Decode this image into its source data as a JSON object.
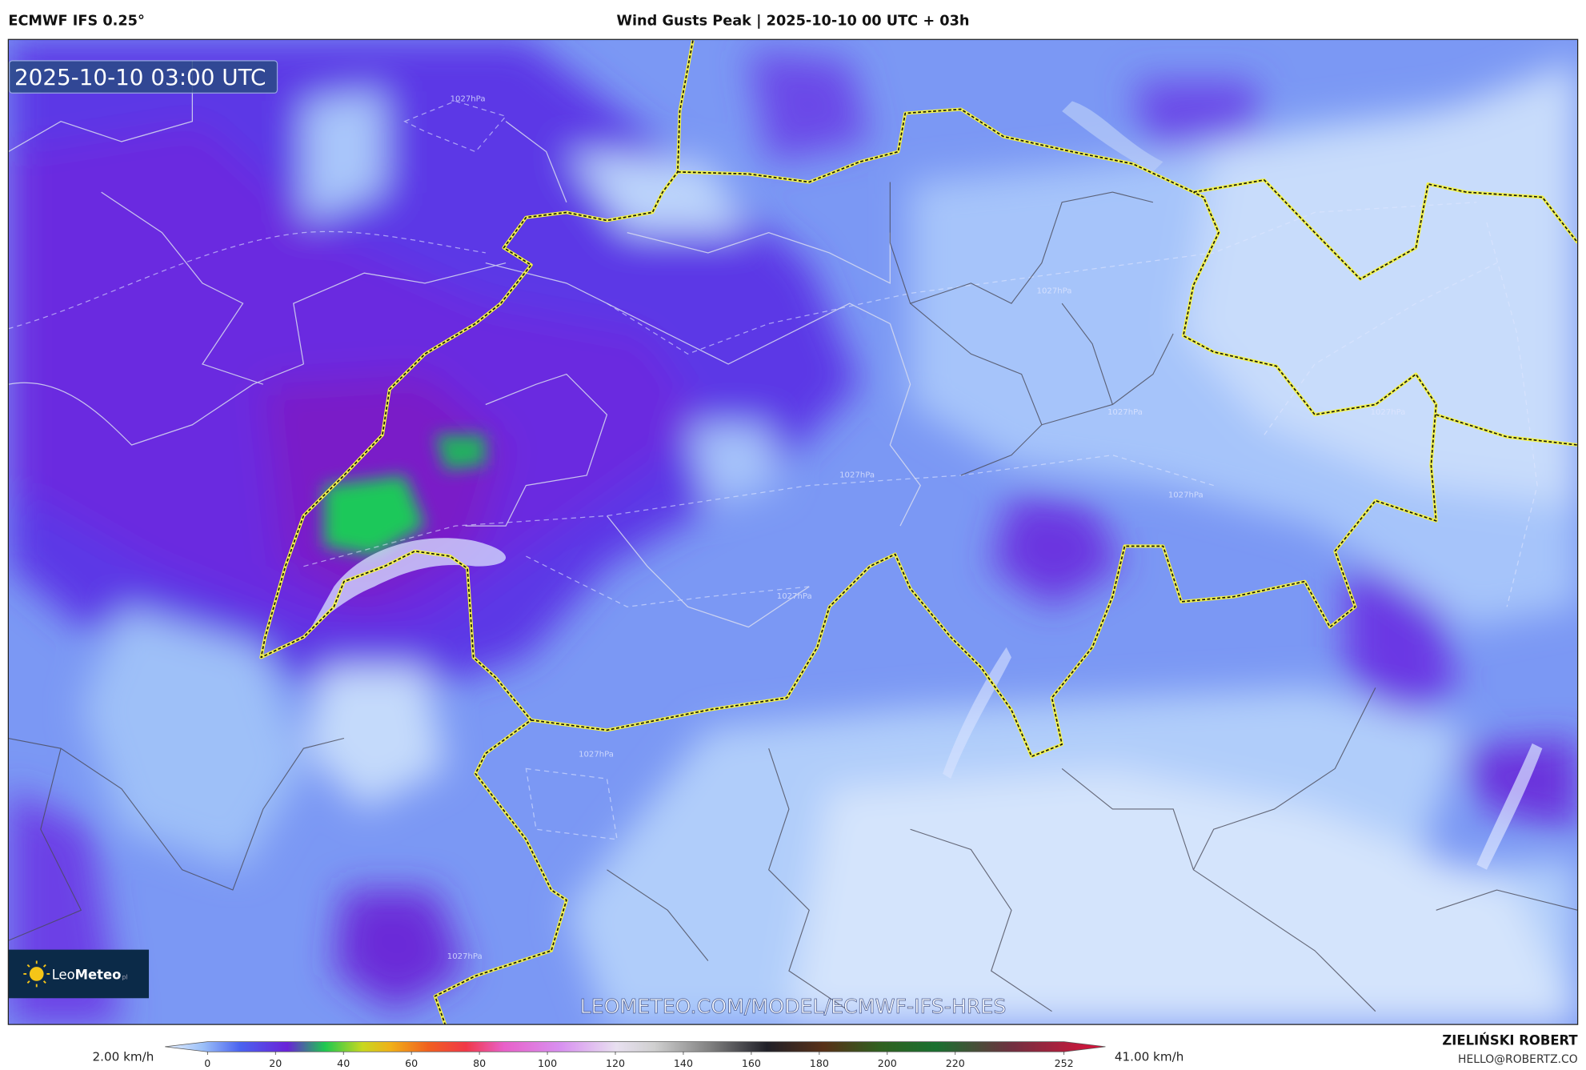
{
  "header": {
    "model": "ECMWF IFS 0.25°",
    "title": "Wind Gusts Peak | 2025-10-10 00 UTC + 03h"
  },
  "map": {
    "timestamp": "2025-10-10 03:00 UTC",
    "logo_leo": "Leo",
    "logo_meteo": "Meteo",
    "logo_suffix": "pl",
    "url": "LEOMETEO.COM/MODEL/ECMWF-IFS-HRES",
    "isobar_labels": [
      "1027hPa",
      "1027hPa",
      "1027hPa",
      "1027hPa",
      "1027hPa",
      "1027hPa",
      "1027hPa",
      "1027hPa",
      "1027hPa"
    ]
  },
  "colorbar": {
    "min_label": "2.00 km/h",
    "max_label": "41.00 km/h",
    "range": [
      0,
      252
    ],
    "ticks": [
      0,
      20,
      40,
      60,
      80,
      100,
      120,
      140,
      160,
      180,
      200,
      220,
      252
    ]
  },
  "footer": {
    "author": "ZIELIŃSKI ROBERT",
    "email": "HELLO@ROBERTZ.CO"
  }
}
